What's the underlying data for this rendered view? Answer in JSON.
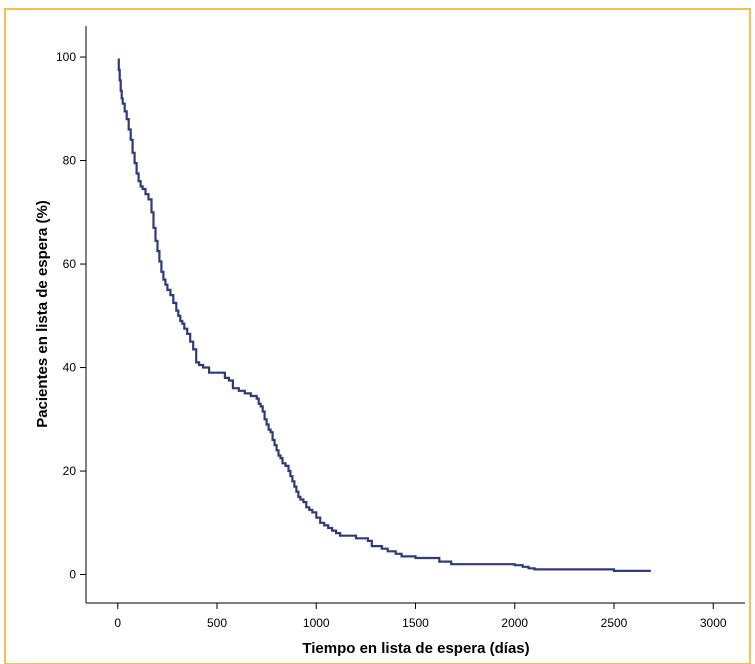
{
  "frame_color": "#f2c14e",
  "chart_data": {
    "type": "line",
    "step": true,
    "title": "",
    "xlabel": "Tiempo en lista de espera (días)",
    "ylabel": "Pacientes en lista de espera (%)",
    "xlim": [
      -160,
      3160
    ],
    "ylim": [
      -5.5,
      106
    ],
    "x_ticks": [
      0,
      500,
      1000,
      1500,
      2000,
      2500,
      3000
    ],
    "y_ticks": [
      0,
      20,
      40,
      60,
      80,
      100
    ],
    "grid": false,
    "legend": "none",
    "series": [
      {
        "color": "#2f3a7e",
        "x": [
          0,
          5,
          10,
          15,
          20,
          25,
          35,
          45,
          55,
          65,
          75,
          85,
          95,
          105,
          115,
          125,
          140,
          155,
          170,
          180,
          190,
          200,
          210,
          220,
          230,
          240,
          250,
          265,
          280,
          295,
          305,
          315,
          325,
          335,
          350,
          365,
          380,
          395,
          410,
          430,
          460,
          500,
          540,
          560,
          580,
          610,
          640,
          670,
          700,
          710,
          720,
          730,
          740,
          750,
          760,
          770,
          780,
          790,
          800,
          810,
          820,
          830,
          845,
          860,
          870,
          880,
          890,
          900,
          910,
          920,
          935,
          950,
          965,
          980,
          1000,
          1020,
          1040,
          1060,
          1080,
          1100,
          1120,
          1140,
          1160,
          1180,
          1200,
          1260,
          1280,
          1330,
          1360,
          1400,
          1430,
          1450,
          1500,
          1580,
          1620,
          1680,
          1750,
          2000,
          2040,
          2070,
          2100,
          2470,
          2500,
          2680
        ],
        "y": [
          99.5,
          97.5,
          95.5,
          93.5,
          92,
          91,
          89.5,
          88,
          86,
          84,
          81.5,
          79.5,
          77.5,
          76,
          75,
          74.5,
          73.5,
          72.5,
          70,
          67,
          64.5,
          62.5,
          60.5,
          58.5,
          57,
          56,
          55,
          54,
          52.5,
          51,
          50,
          49,
          48.5,
          47.5,
          46.5,
          45,
          43.5,
          41,
          40.5,
          40,
          39,
          39,
          38,
          37.5,
          36,
          35.5,
          35,
          34.5,
          34,
          33,
          32.5,
          31.5,
          30,
          29,
          28,
          27.5,
          26,
          25,
          24,
          23,
          22.5,
          21.5,
          21,
          20,
          19,
          18,
          17,
          16,
          15,
          14.5,
          14,
          13,
          12.5,
          12,
          11,
          10,
          9.5,
          9,
          8.5,
          8,
          7.5,
          7.5,
          7.5,
          7.5,
          7,
          6.5,
          5.5,
          5,
          4.5,
          4,
          3.5,
          3.5,
          3.2,
          3.2,
          2.5,
          2,
          2,
          1.8,
          1.5,
          1.2,
          1,
          1,
          0.7,
          0.5
        ]
      }
    ]
  }
}
